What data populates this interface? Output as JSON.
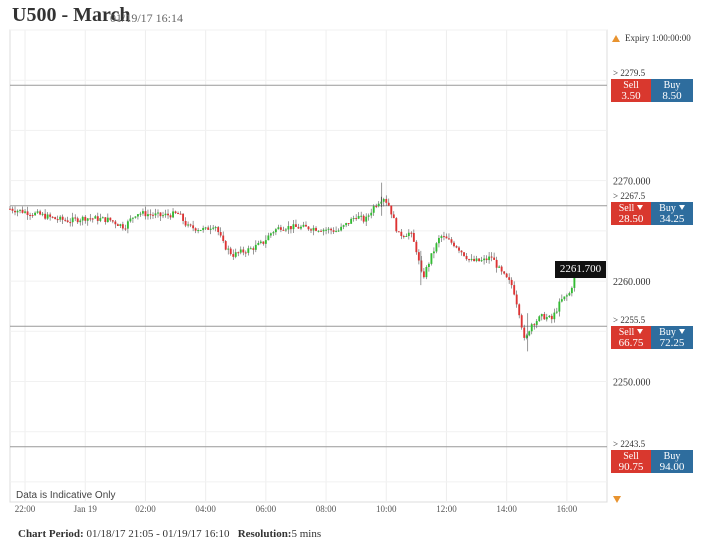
{
  "header": {
    "title": "U500 - March",
    "date": "01/19/17 16:14"
  },
  "expiry": "Expiry 1:00:00:00",
  "levels": [
    {
      "label": "> 2279.5",
      "price": 2279.5,
      "sell_label": "Sell",
      "buy_label": "Buy",
      "sell": "3.50",
      "buy": "8.50"
    },
    {
      "label": "> 2267.5",
      "price": 2267.5,
      "sell_label": "Sell",
      "buy_label": "Buy",
      "sell": "28.50",
      "buy": "34.25"
    },
    {
      "label": "> 2255.5",
      "price": 2255.5,
      "sell_label": "Sell",
      "buy_label": "Buy",
      "sell": "66.75",
      "buy": "72.25"
    },
    {
      "label": "> 2243.5",
      "price": 2243.5,
      "sell_label": "Sell",
      "buy_label": "Buy",
      "sell": "90.75",
      "buy": "94.00"
    }
  ],
  "current_price": "2261.700",
  "indicative": "Data is Indicative Only",
  "footer": {
    "period_label": "Chart Period:",
    "period": "01/18/17 21:05 - 01/19/17 16:10",
    "resolution_label": "Resolution:",
    "resolution": "5 mins"
  },
  "colors": {
    "up": "#33bb33",
    "down": "#dd3333",
    "sell": "#d9382e",
    "buy": "#2e6d9e",
    "expiry": "#e8932f"
  },
  "chart_data": {
    "type": "candlestick",
    "x_start": "21:05",
    "x_interval_minutes": 5,
    "yticks": [
      2250,
      2260,
      2270
    ],
    "ytick_labels": [
      "2250.000",
      "2260.000",
      "2270.000"
    ],
    "ylim": [
      2238,
      2285
    ],
    "xlim": [
      "21:30",
      "17:20"
    ],
    "xticks": [
      "22:00",
      "Jan 19",
      "02:00",
      "04:00",
      "06:00",
      "08:00",
      "10:00",
      "12:00",
      "14:00",
      "16:00"
    ],
    "xtick_hours": [
      22,
      24,
      26,
      28,
      30,
      32,
      34,
      36,
      38,
      40
    ],
    "key_points": [
      [
        21.5,
        2267.2
      ],
      [
        22.5,
        2266.6
      ],
      [
        23.0,
        2266.2
      ],
      [
        23.5,
        2266.0
      ],
      [
        24.0,
        2266.3
      ],
      [
        24.8,
        2266.1
      ],
      [
        25.3,
        2265.4
      ],
      [
        25.7,
        2266.8
      ],
      [
        26.5,
        2266.5
      ],
      [
        27.1,
        2266.7
      ],
      [
        27.4,
        2265.4
      ],
      [
        28.0,
        2265.1
      ],
      [
        28.3,
        2265.7
      ],
      [
        28.6,
        2263.6
      ],
      [
        28.9,
        2262.6
      ],
      [
        29.5,
        2263.2
      ],
      [
        29.9,
        2263.8
      ],
      [
        30.2,
        2264.9
      ],
      [
        30.5,
        2265.4
      ],
      [
        31.5,
        2265.3
      ],
      [
        32.4,
        2265.0
      ],
      [
        32.7,
        2265.7
      ],
      [
        33.0,
        2266.5
      ],
      [
        33.3,
        2266.0
      ],
      [
        33.6,
        2267.5
      ],
      [
        33.9,
        2268.4
      ],
      [
        34.1,
        2267.5
      ],
      [
        34.4,
        2264.6
      ],
      [
        34.8,
        2264.8
      ],
      [
        35.0,
        2263.1
      ],
      [
        35.2,
        2260.2
      ],
      [
        35.5,
        2262.5
      ],
      [
        35.8,
        2264.5
      ],
      [
        36.3,
        2263.6
      ],
      [
        36.8,
        2262.0
      ],
      [
        37.2,
        2262.0
      ],
      [
        37.5,
        2262.4
      ],
      [
        37.8,
        2260.9
      ],
      [
        38.2,
        2259.5
      ],
      [
        38.45,
        2256.5
      ],
      [
        38.6,
        2253.8
      ],
      [
        38.8,
        2255.7
      ],
      [
        39.2,
        2256.5
      ],
      [
        39.5,
        2256.2
      ],
      [
        39.8,
        2258.0
      ],
      [
        40.1,
        2258.8
      ],
      [
        40.3,
        2261.0
      ]
    ]
  }
}
